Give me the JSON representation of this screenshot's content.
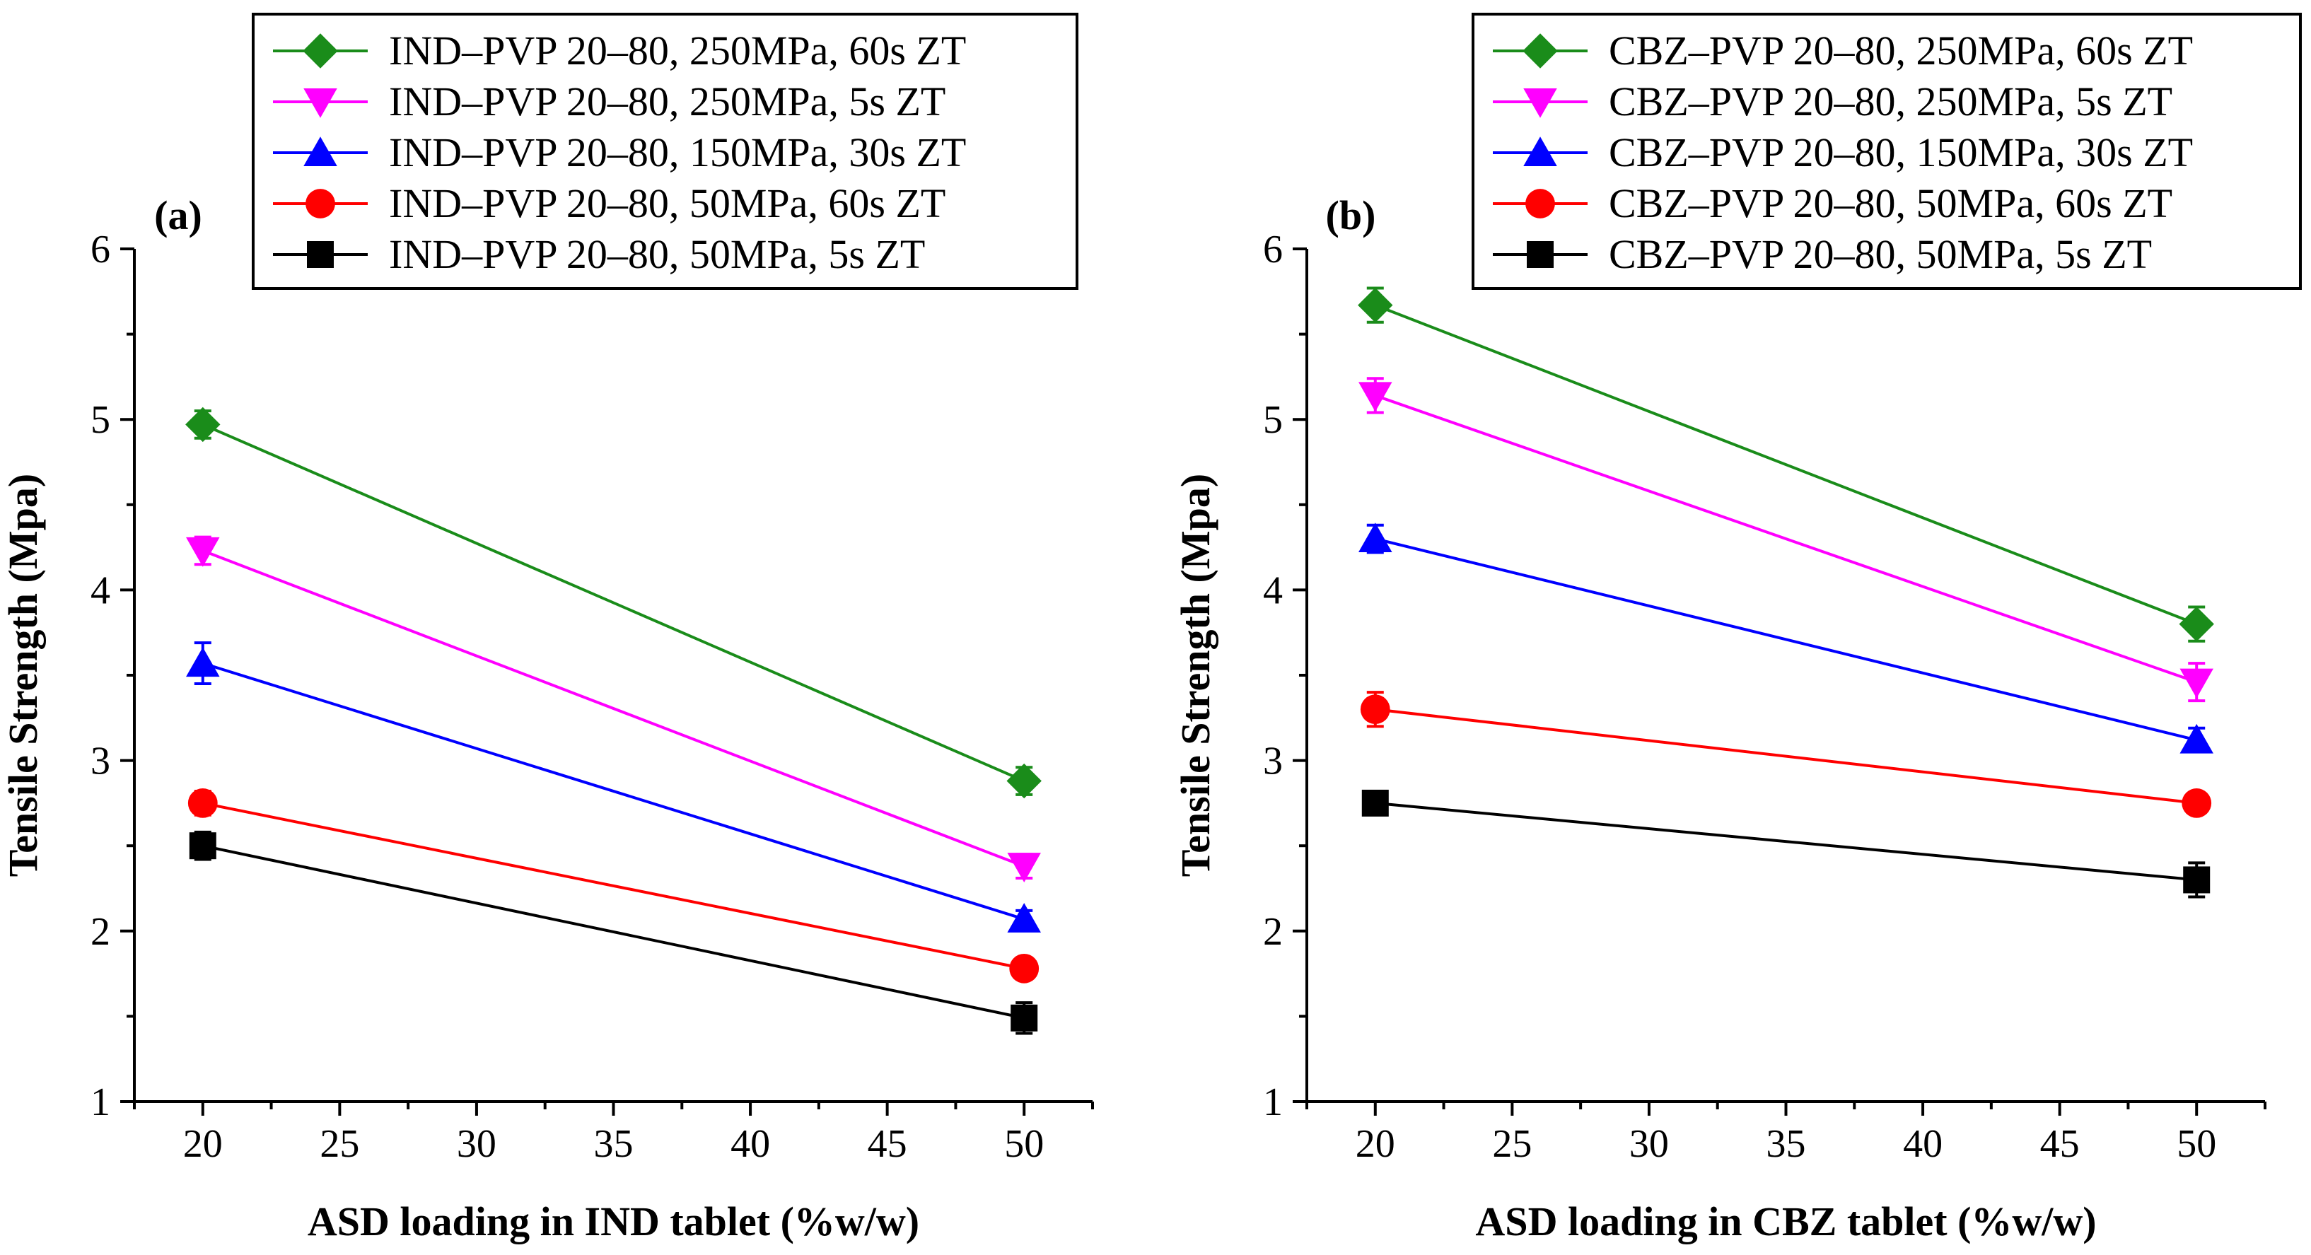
{
  "chart_data": [
    {
      "type": "line",
      "panel_label": "(a)",
      "xlabel": "ASD loading in IND tablet (%w/w)",
      "ylabel": "Tensile Strength (Mpa)",
      "xlim": [
        17.5,
        52.5
      ],
      "ylim": [
        1,
        6
      ],
      "xticks": [
        20,
        25,
        30,
        35,
        40,
        45,
        50
      ],
      "yticks": [
        1,
        2,
        3,
        4,
        5,
        6
      ],
      "legend_position": "top-right",
      "series": [
        {
          "name": "IND–PVP 20–80, 250MPa, 60s ZT",
          "color": "#1a8c1a",
          "marker": "diamond",
          "x": [
            20,
            50
          ],
          "y": [
            4.97,
            2.88
          ],
          "err": [
            0.08,
            0.08
          ]
        },
        {
          "name": "IND–PVP 20–80, 250MPa, 5s ZT",
          "color": "#ff00ff",
          "marker": "triangle-down",
          "x": [
            20,
            50
          ],
          "y": [
            4.23,
            2.38
          ],
          "err": [
            0.08,
            0.07
          ]
        },
        {
          "name": "IND–PVP 20–80, 150MPa, 30s ZT",
          "color": "#0000ff",
          "marker": "triangle-up",
          "x": [
            20,
            50
          ],
          "y": [
            3.57,
            2.07
          ],
          "err": [
            0.12,
            0.05
          ]
        },
        {
          "name": "IND–PVP 20–80, 50MPa, 60s ZT",
          "color": "#ff0000",
          "marker": "circle",
          "x": [
            20,
            50
          ],
          "y": [
            2.75,
            1.78
          ],
          "err": [
            0.07,
            0.06
          ]
        },
        {
          "name": "IND–PVP 20–80, 50MPa, 5s ZT",
          "color": "#000000",
          "marker": "square",
          "x": [
            20,
            50
          ],
          "y": [
            2.5,
            1.49
          ],
          "err": [
            0.08,
            0.09
          ]
        }
      ]
    },
    {
      "type": "line",
      "panel_label": "(b)",
      "xlabel": "ASD loading in CBZ tablet (%w/w)",
      "ylabel": "Tensile Strength (Mpa)",
      "xlim": [
        17.5,
        52.5
      ],
      "ylim": [
        1,
        6
      ],
      "xticks": [
        20,
        25,
        30,
        35,
        40,
        45,
        50
      ],
      "yticks": [
        1,
        2,
        3,
        4,
        5,
        6
      ],
      "legend_position": "top-right",
      "series": [
        {
          "name": "CBZ–PVP 20–80, 250MPa, 60s ZT",
          "color": "#1a8c1a",
          "marker": "diamond",
          "x": [
            20,
            50
          ],
          "y": [
            5.67,
            3.8
          ],
          "err": [
            0.1,
            0.1
          ]
        },
        {
          "name": "CBZ–PVP 20–80, 250MPa, 5s ZT",
          "color": "#ff00ff",
          "marker": "triangle-down",
          "x": [
            20,
            50
          ],
          "y": [
            5.14,
            3.46
          ],
          "err": [
            0.1,
            0.11
          ]
        },
        {
          "name": "CBZ–PVP 20–80, 150MPa, 30s ZT",
          "color": "#0000ff",
          "marker": "triangle-up",
          "x": [
            20,
            50
          ],
          "y": [
            4.3,
            3.12
          ],
          "err": [
            0.08,
            0.07
          ]
        },
        {
          "name": "CBZ–PVP 20–80, 50MPa, 60s ZT",
          "color": "#ff0000",
          "marker": "circle",
          "x": [
            20,
            50
          ],
          "y": [
            3.3,
            2.75
          ],
          "err": [
            0.1,
            0.05
          ]
        },
        {
          "name": "CBZ–PVP 20–80, 50MPa, 5s ZT",
          "color": "#000000",
          "marker": "square",
          "x": [
            20,
            50
          ],
          "y": [
            2.75,
            2.3
          ],
          "err": [
            0.04,
            0.1
          ]
        }
      ]
    }
  ]
}
